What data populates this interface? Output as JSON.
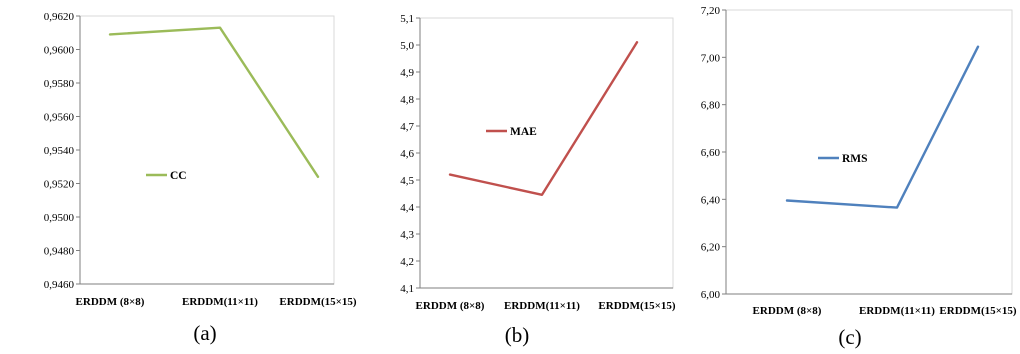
{
  "chart_data": [
    {
      "type": "line",
      "categories": [
        "ERDDM (8×8)",
        "ERDDM(11×11)",
        "ERDDM(15×15)"
      ],
      "series": [
        {
          "name": "CC",
          "values": [
            0.9609,
            0.9613,
            0.9524
          ],
          "color": "#9bbb59"
        }
      ],
      "ylim": [
        0.946,
        0.962
      ],
      "yticks": [
        "0,9460",
        "0,9480",
        "0,9500",
        "0,9520",
        "0,9540",
        "0,9560",
        "0,9580",
        "0,9600",
        "0,9620"
      ],
      "legend_position": "center",
      "caption": "(a)"
    },
    {
      "type": "line",
      "categories": [
        "ERDDM (8×8)",
        "ERDDM(11×11)",
        "ERDDM(15×15)"
      ],
      "series": [
        {
          "name": "MAE",
          "values": [
            4.52,
            4.445,
            5.01
          ],
          "color": "#c0504d"
        }
      ],
      "ylim": [
        4.1,
        5.1
      ],
      "yticks": [
        "4,1",
        "4,2",
        "4,3",
        "4,4",
        "4,5",
        "4,6",
        "4,7",
        "4,8",
        "4,9",
        "5,0",
        "5,1"
      ],
      "legend_position": "center-left",
      "caption": "(b)"
    },
    {
      "type": "line",
      "categories": [
        "ERDDM (8×8)",
        "ERDDM(11×11)",
        "ERDDM(15×15)"
      ],
      "series": [
        {
          "name": "RMS",
          "values": [
            6.395,
            6.365,
            7.045
          ],
          "color": "#4f81bd"
        }
      ],
      "ylim": [
        6.0,
        7.2
      ],
      "yticks": [
        "6,00",
        "6,20",
        "6,40",
        "6,60",
        "6,80",
        "7,00",
        "7,20"
      ],
      "legend_position": "center-left",
      "caption": "(c)"
    }
  ]
}
